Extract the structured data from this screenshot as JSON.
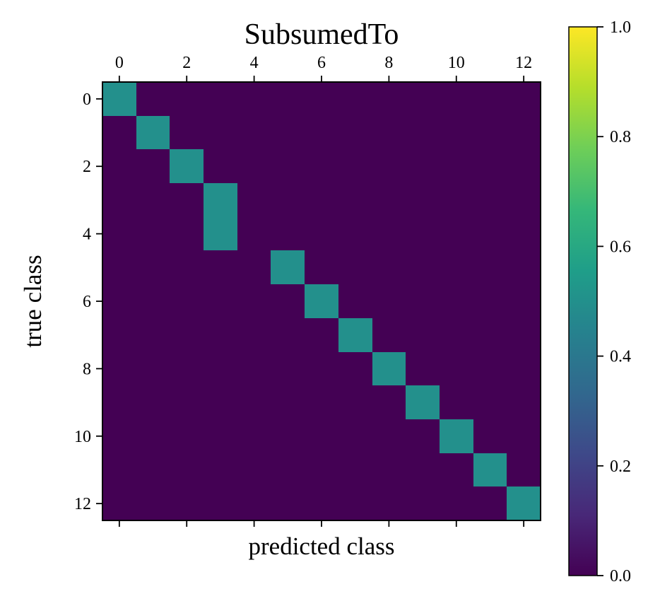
{
  "chart_data": {
    "type": "heatmap",
    "title": "SubsumedTo",
    "xlabel": "predicted class",
    "ylabel": "true class",
    "x_categories": [
      0,
      1,
      2,
      3,
      4,
      5,
      6,
      7,
      8,
      9,
      10,
      11,
      12
    ],
    "y_categories": [
      0,
      1,
      2,
      3,
      4,
      5,
      6,
      7,
      8,
      9,
      10,
      11,
      12
    ],
    "x_ticks": [
      0,
      2,
      4,
      6,
      8,
      10,
      12
    ],
    "y_ticks": [
      0,
      2,
      4,
      6,
      8,
      10,
      12
    ],
    "x_tick_labels": [
      "0",
      "2",
      "4",
      "6",
      "8",
      "10",
      "12"
    ],
    "y_tick_labels": [
      "0",
      "2",
      "4",
      "6",
      "8",
      "10",
      "12"
    ],
    "x_tick_position": "top",
    "cells": [
      {
        "row": 0,
        "col": 0,
        "value": 0.5
      },
      {
        "row": 1,
        "col": 1,
        "value": 0.5
      },
      {
        "row": 2,
        "col": 2,
        "value": 0.5
      },
      {
        "row": 3,
        "col": 3,
        "value": 0.5
      },
      {
        "row": 4,
        "col": 3,
        "value": 0.5
      },
      {
        "row": 5,
        "col": 5,
        "value": 0.5
      },
      {
        "row": 6,
        "col": 6,
        "value": 0.5
      },
      {
        "row": 7,
        "col": 7,
        "value": 0.5
      },
      {
        "row": 8,
        "col": 8,
        "value": 0.5
      },
      {
        "row": 9,
        "col": 9,
        "value": 0.5
      },
      {
        "row": 10,
        "col": 10,
        "value": 0.5
      },
      {
        "row": 11,
        "col": 11,
        "value": 0.5
      },
      {
        "row": 12,
        "col": 12,
        "value": 0.5
      }
    ],
    "default_value": 0.0,
    "colormap": "viridis",
    "colormap_stops": [
      "#440154",
      "#482878",
      "#3e4989",
      "#31688e",
      "#26828e",
      "#1f9e89",
      "#35b779",
      "#6ece58",
      "#b5de2b",
      "#fde725"
    ],
    "colorbar": {
      "range": [
        0.0,
        1.0
      ],
      "ticks": [
        0.0,
        0.2,
        0.4,
        0.6,
        0.8,
        1.0
      ],
      "tick_labels": [
        "0.0",
        "0.2",
        "0.4",
        "0.6",
        "0.8",
        "1.0"
      ]
    },
    "grid": false
  }
}
